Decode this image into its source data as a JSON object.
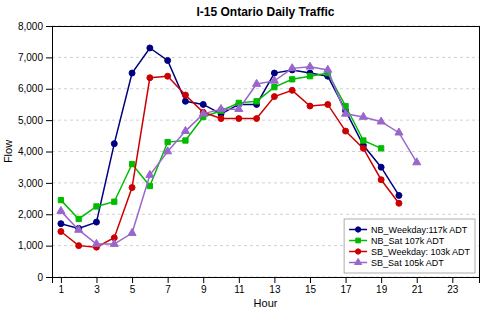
{
  "chart_data": {
    "type": "line",
    "title": "I-15 Ontario Daily Traffic",
    "xlabel": "Hour",
    "ylabel": "Flow",
    "x": [
      1,
      2,
      3,
      4,
      5,
      6,
      7,
      8,
      9,
      10,
      11,
      12,
      13,
      14,
      15,
      16,
      17,
      18,
      19,
      20,
      21,
      22,
      23,
      24
    ],
    "series": [
      {
        "name": "NB_Weekday:117k ADT",
        "color": "#000080",
        "marker": "circle",
        "values": [
          1700,
          1550,
          1750,
          4250,
          6500,
          7300,
          6900,
          5600,
          5500,
          5200,
          5500,
          5500,
          6500,
          6600,
          6500,
          6400,
          5300,
          4200,
          3500,
          2600,
          null,
          null,
          null,
          null
        ]
      },
      {
        "name": "NB_Sat 107k ADT",
        "color": "#00BB00",
        "marker": "square",
        "values": [
          2450,
          1850,
          2250,
          2400,
          3600,
          2900,
          4300,
          4350,
          5100,
          5300,
          5550,
          5600,
          6050,
          6300,
          6400,
          6500,
          5450,
          4350,
          4100,
          null,
          null,
          null,
          null,
          null
        ]
      },
      {
        "name": "SB_Weekday: 103k ADT",
        "color": "#CC0000",
        "marker": "circle",
        "values": [
          1450,
          1000,
          950,
          1250,
          2850,
          6350,
          6400,
          5800,
          5250,
          5050,
          5050,
          5050,
          5750,
          5950,
          5450,
          5500,
          4650,
          4100,
          3100,
          2350,
          null,
          null,
          null,
          null
        ]
      },
      {
        "name": "SB_Sat 105k ADT",
        "color": "#9966CC",
        "marker": "triangle",
        "values": [
          2100,
          1500,
          1050,
          1050,
          1400,
          3250,
          4000,
          4650,
          5200,
          5350,
          5350,
          6150,
          6250,
          6650,
          6700,
          6600,
          5200,
          5100,
          4950,
          4600,
          3650,
          null,
          null,
          null
        ]
      }
    ],
    "xlim": [
      0.5,
      24.5
    ],
    "xticks": [
      1,
      3,
      5,
      7,
      9,
      11,
      13,
      15,
      17,
      19,
      21,
      23
    ],
    "ylim": [
      0,
      8000
    ],
    "yticks": [
      0,
      {
        "value": 1000,
        "label": "1,000"
      },
      {
        "value": 2000,
        "label": "2,000"
      },
      {
        "value": 3000,
        "label": "3,000"
      },
      {
        "value": 4000,
        "label": "4,000"
      },
      {
        "value": 5000,
        "label": "5,000"
      },
      {
        "value": 6000,
        "label": "6,000"
      },
      {
        "value": 7000,
        "label": "7,000"
      },
      {
        "value": 8000,
        "label": "8,000"
      }
    ],
    "grid": true,
    "legend": "lower right"
  }
}
